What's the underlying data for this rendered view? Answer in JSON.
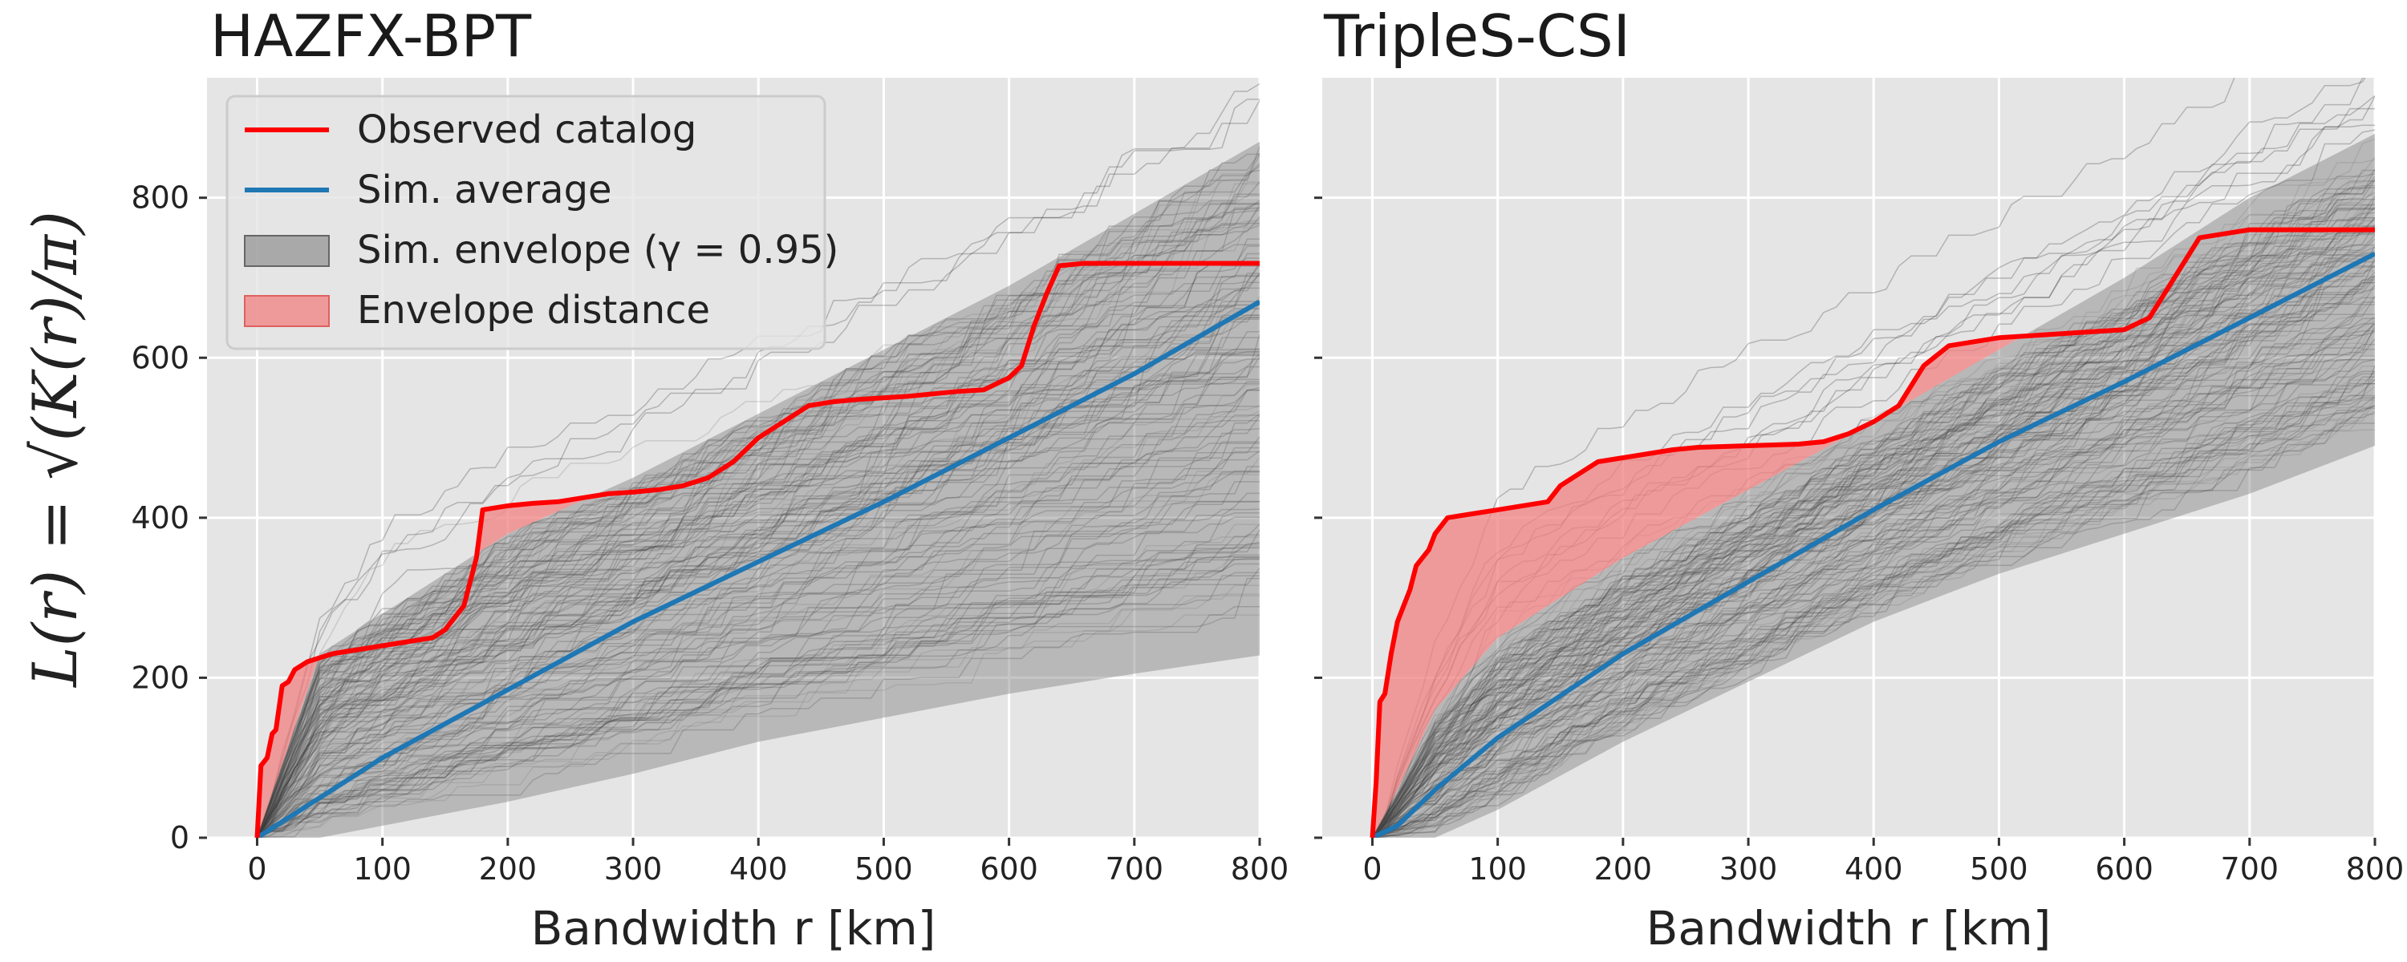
{
  "figure": {
    "ylabel": "L(r) = √(K(r)/π)"
  },
  "legend": {
    "items": [
      {
        "label": "Observed catalog",
        "kind": "line",
        "color": "#ff0000"
      },
      {
        "label": "Sim. average",
        "kind": "line",
        "color": "#1f77b4"
      },
      {
        "label": "Sim. envelope (γ = 0.95)",
        "kind": "patch",
        "color": "#808080"
      },
      {
        "label": "Envelope distance",
        "kind": "patch",
        "color": "#f08080"
      }
    ]
  },
  "colors": {
    "observed": "#ff0000",
    "average": "#1f77b4",
    "envelope": "#808080",
    "distance": "#f08080",
    "axes_bg": "#e5e5e5",
    "grid": "#ffffff"
  },
  "chart_data": [
    {
      "type": "line",
      "title": "HAZFX-BPT",
      "xlabel": "Bandwidth r  [km]",
      "ylabel": "L(r) = √(K(r)/π)",
      "xlim": [
        -40,
        800
      ],
      "ylim": [
        0,
        950
      ],
      "xticks": [
        0,
        100,
        200,
        300,
        400,
        500,
        600,
        700,
        800
      ],
      "yticks": [
        0,
        200,
        400,
        600,
        800
      ],
      "grid": true,
      "legend_position": "top-left",
      "series": [
        {
          "name": "Observed catalog",
          "x": [
            0,
            3,
            8,
            12,
            15,
            20,
            25,
            30,
            40,
            50,
            60,
            80,
            100,
            120,
            140,
            150,
            160,
            165,
            175,
            180,
            200,
            220,
            240,
            260,
            280,
            300,
            320,
            340,
            360,
            380,
            400,
            420,
            440,
            460,
            480,
            500,
            520,
            540,
            560,
            580,
            600,
            610,
            620,
            630,
            640,
            660,
            700,
            800
          ],
          "y": [
            0,
            90,
            100,
            130,
            135,
            190,
            195,
            210,
            220,
            225,
            230,
            235,
            240,
            245,
            250,
            260,
            280,
            290,
            350,
            410,
            415,
            418,
            420,
            425,
            430,
            432,
            435,
            440,
            450,
            470,
            500,
            520,
            540,
            545,
            548,
            550,
            552,
            555,
            558,
            560,
            575,
            590,
            640,
            680,
            715,
            718,
            718,
            718
          ]
        },
        {
          "name": "Sim. average",
          "x": [
            0,
            50,
            100,
            200,
            300,
            400,
            500,
            600,
            700,
            800
          ],
          "y": [
            0,
            50,
            100,
            185,
            270,
            345,
            420,
            500,
            580,
            670
          ]
        },
        {
          "name": "Sim. envelope (γ = 0.95)",
          "x": [
            0,
            50,
            100,
            200,
            300,
            400,
            500,
            600,
            700,
            800
          ],
          "y_lower": [
            0,
            0,
            15,
            45,
            80,
            120,
            150,
            180,
            205,
            228
          ],
          "y_upper": [
            0,
            230,
            280,
            380,
            450,
            530,
            610,
            690,
            780,
            870
          ]
        }
      ]
    },
    {
      "type": "line",
      "title": "TripleS-CSI",
      "xlabel": "Bandwidth r  [km]",
      "xlim": [
        -40,
        800
      ],
      "ylim": [
        0,
        950
      ],
      "xticks": [
        0,
        100,
        200,
        300,
        400,
        500,
        600,
        700,
        800
      ],
      "yticks": [
        0,
        200,
        400,
        600,
        800
      ],
      "grid": true,
      "series": [
        {
          "name": "Observed catalog",
          "x": [
            0,
            3,
            6,
            10,
            15,
            20,
            25,
            30,
            35,
            40,
            45,
            50,
            60,
            80,
            100,
            120,
            140,
            150,
            160,
            180,
            200,
            220,
            240,
            260,
            300,
            340,
            360,
            380,
            400,
            420,
            440,
            460,
            480,
            500,
            550,
            600,
            620,
            640,
            660,
            700,
            800
          ],
          "y": [
            0,
            70,
            170,
            180,
            230,
            270,
            290,
            310,
            340,
            350,
            360,
            380,
            400,
            405,
            410,
            415,
            420,
            440,
            450,
            470,
            475,
            480,
            485,
            488,
            490,
            492,
            495,
            505,
            520,
            540,
            590,
            615,
            620,
            625,
            630,
            635,
            650,
            700,
            750,
            760,
            760
          ]
        },
        {
          "name": "Sim. average",
          "x": [
            0,
            20,
            50,
            100,
            200,
            300,
            400,
            500,
            600,
            700,
            800
          ],
          "y": [
            0,
            15,
            60,
            125,
            230,
            320,
            410,
            495,
            570,
            650,
            730
          ]
        },
        {
          "name": "Sim. envelope (γ = 0.95)",
          "x": [
            0,
            20,
            50,
            100,
            200,
            300,
            400,
            500,
            600,
            700,
            800
          ],
          "y_lower": [
            0,
            0,
            0,
            35,
            120,
            195,
            270,
            330,
            380,
            430,
            490
          ],
          "y_upper": [
            0,
            60,
            160,
            250,
            350,
            435,
            520,
            610,
            700,
            800,
            880
          ]
        }
      ]
    }
  ]
}
